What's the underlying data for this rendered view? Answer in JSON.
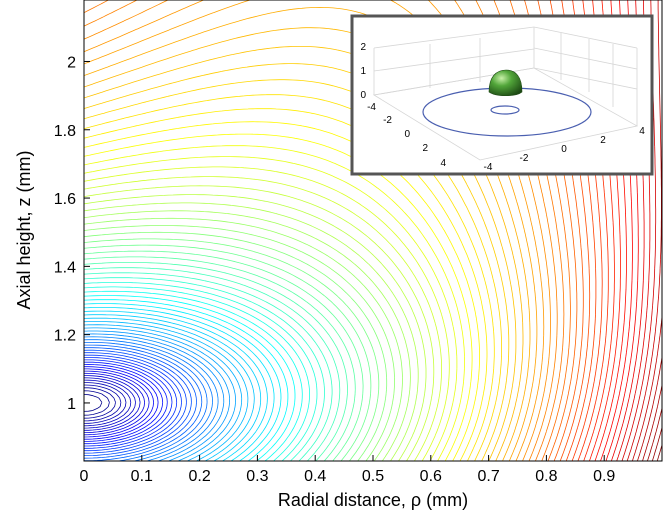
{
  "chart_data": {
    "type": "contour",
    "xlabel": "Radial distance, ρ (mm)",
    "ylabel": "Axial height, z (mm)",
    "xlim": [
      0,
      1
    ],
    "ylim": [
      0.83,
      2.18
    ],
    "x_ticks": [
      "0",
      "0.1",
      "0.2",
      "0.3",
      "0.4",
      "0.5",
      "0.6",
      "0.7",
      "0.8",
      "0.9"
    ],
    "x_tick_values": [
      0,
      0.1,
      0.2,
      0.3,
      0.4,
      0.5,
      0.6,
      0.7,
      0.8,
      0.9
    ],
    "y_ticks": [
      "1",
      "1.2",
      "1.4",
      "1.6",
      "1.8",
      "2"
    ],
    "y_tick_values": [
      1.0,
      1.2,
      1.4,
      1.6,
      1.8,
      2.0
    ],
    "contour_center": [
      0,
      1.0
    ],
    "colormap": "jet",
    "grid": false,
    "inset": {
      "type": "3d-surface",
      "x_ticks": [
        "-4",
        "-2",
        "0",
        "2",
        "4"
      ],
      "y_ticks": [
        "-4",
        "-2",
        "0",
        "2",
        "4"
      ],
      "z_ticks": [
        "0",
        "1",
        "2"
      ],
      "x_tick_values": [
        -4,
        -2,
        0,
        2,
        4
      ],
      "y_tick_values": [
        -4,
        -2,
        0,
        2,
        4
      ],
      "z_tick_values": [
        0,
        1,
        2
      ],
      "object_color": "#3a8a2a",
      "ring_color": "#4a5fb0"
    }
  }
}
